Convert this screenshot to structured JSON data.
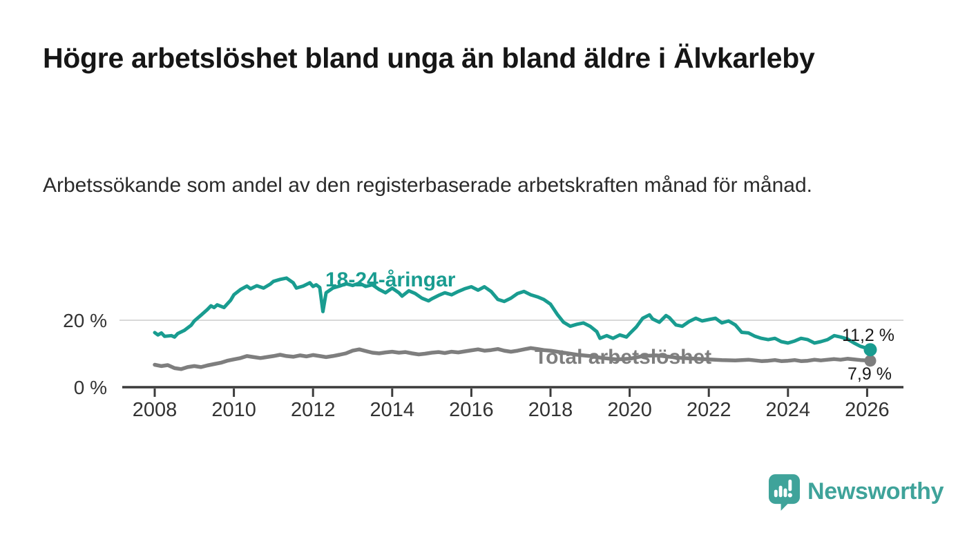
{
  "page": {
    "title": "Högre arbetslöshet bland unga än bland äldre i Älvkarleby",
    "subtitle": "Arbetssökande som andel av den registerbaserade arbetskraften månad för månad."
  },
  "chart_data": {
    "type": "line",
    "title": "Högre arbetslöshet bland unga än bland äldre i Älvkarleby",
    "xlabel": "",
    "ylabel": "",
    "unit": "%",
    "x_axis": {
      "min": 2007.2,
      "max": 2026.9,
      "ticks": [
        2008,
        2010,
        2012,
        2014,
        2016,
        2018,
        2020,
        2022,
        2024,
        2026
      ]
    },
    "y_axis": {
      "min": 0,
      "max": 34,
      "ticks": [
        {
          "value": 0,
          "label": "0 %"
        },
        {
          "value": 20,
          "label": "20 %"
        }
      ]
    },
    "gridlines_y": [
      20
    ],
    "legend_position": "inline-labels",
    "series": [
      {
        "name": "18-24-åringar",
        "color": "#199c90",
        "end_label": "11,2 %",
        "end_value": 11.2,
        "points": [
          [
            2008.0,
            16.3
          ],
          [
            2008.08,
            15.6
          ],
          [
            2008.17,
            16.2
          ],
          [
            2008.25,
            15.2
          ],
          [
            2008.42,
            15.4
          ],
          [
            2008.5,
            15.0
          ],
          [
            2008.58,
            16.0
          ],
          [
            2008.75,
            17.0
          ],
          [
            2008.92,
            18.5
          ],
          [
            2009.0,
            19.8
          ],
          [
            2009.17,
            21.5
          ],
          [
            2009.33,
            23.2
          ],
          [
            2009.42,
            24.3
          ],
          [
            2009.5,
            23.8
          ],
          [
            2009.58,
            24.6
          ],
          [
            2009.75,
            23.8
          ],
          [
            2009.92,
            26.0
          ],
          [
            2010.0,
            27.6
          ],
          [
            2010.17,
            29.2
          ],
          [
            2010.33,
            30.2
          ],
          [
            2010.42,
            29.4
          ],
          [
            2010.58,
            30.3
          ],
          [
            2010.75,
            29.6
          ],
          [
            2010.92,
            30.8
          ],
          [
            2011.0,
            31.6
          ],
          [
            2011.17,
            32.2
          ],
          [
            2011.33,
            32.6
          ],
          [
            2011.5,
            31.2
          ],
          [
            2011.58,
            29.6
          ],
          [
            2011.75,
            30.2
          ],
          [
            2011.92,
            31.2
          ],
          [
            2012.0,
            30.1
          ],
          [
            2012.08,
            30.6
          ],
          [
            2012.17,
            29.8
          ],
          [
            2012.25,
            22.6
          ],
          [
            2012.33,
            28.2
          ],
          [
            2012.5,
            29.6
          ],
          [
            2012.67,
            30.2
          ],
          [
            2012.83,
            30.9
          ],
          [
            2013.0,
            30.4
          ],
          [
            2013.17,
            31.1
          ],
          [
            2013.33,
            30.1
          ],
          [
            2013.5,
            30.6
          ],
          [
            2013.67,
            29.2
          ],
          [
            2013.83,
            28.2
          ],
          [
            2014.0,
            29.6
          ],
          [
            2014.17,
            28.2
          ],
          [
            2014.25,
            27.2
          ],
          [
            2014.42,
            28.8
          ],
          [
            2014.58,
            28.0
          ],
          [
            2014.75,
            26.6
          ],
          [
            2014.92,
            25.8
          ],
          [
            2015.0,
            26.4
          ],
          [
            2015.17,
            27.4
          ],
          [
            2015.33,
            28.2
          ],
          [
            2015.5,
            27.6
          ],
          [
            2015.67,
            28.6
          ],
          [
            2015.83,
            29.4
          ],
          [
            2016.0,
            30.0
          ],
          [
            2016.17,
            29.0
          ],
          [
            2016.33,
            30.0
          ],
          [
            2016.5,
            28.6
          ],
          [
            2016.67,
            26.2
          ],
          [
            2016.83,
            25.6
          ],
          [
            2017.0,
            26.6
          ],
          [
            2017.17,
            28.0
          ],
          [
            2017.33,
            28.6
          ],
          [
            2017.5,
            27.6
          ],
          [
            2017.67,
            27.0
          ],
          [
            2017.83,
            26.2
          ],
          [
            2018.0,
            24.8
          ],
          [
            2018.17,
            21.8
          ],
          [
            2018.33,
            19.4
          ],
          [
            2018.5,
            18.2
          ],
          [
            2018.67,
            18.8
          ],
          [
            2018.83,
            19.2
          ],
          [
            2019.0,
            18.2
          ],
          [
            2019.17,
            16.6
          ],
          [
            2019.25,
            14.6
          ],
          [
            2019.42,
            15.4
          ],
          [
            2019.58,
            14.6
          ],
          [
            2019.75,
            15.6
          ],
          [
            2019.92,
            15.0
          ],
          [
            2020.0,
            16.0
          ],
          [
            2020.17,
            18.0
          ],
          [
            2020.33,
            20.6
          ],
          [
            2020.5,
            21.6
          ],
          [
            2020.58,
            20.4
          ],
          [
            2020.75,
            19.4
          ],
          [
            2020.92,
            21.4
          ],
          [
            2021.0,
            20.8
          ],
          [
            2021.17,
            18.6
          ],
          [
            2021.33,
            18.2
          ],
          [
            2021.5,
            19.6
          ],
          [
            2021.67,
            20.6
          ],
          [
            2021.83,
            19.8
          ],
          [
            2022.0,
            20.2
          ],
          [
            2022.17,
            20.6
          ],
          [
            2022.33,
            19.2
          ],
          [
            2022.5,
            19.8
          ],
          [
            2022.67,
            18.6
          ],
          [
            2022.83,
            16.4
          ],
          [
            2023.0,
            16.2
          ],
          [
            2023.17,
            15.2
          ],
          [
            2023.33,
            14.6
          ],
          [
            2023.5,
            14.2
          ],
          [
            2023.67,
            14.6
          ],
          [
            2023.83,
            13.6
          ],
          [
            2024.0,
            13.2
          ],
          [
            2024.17,
            13.8
          ],
          [
            2024.33,
            14.6
          ],
          [
            2024.5,
            14.2
          ],
          [
            2024.67,
            13.2
          ],
          [
            2024.83,
            13.6
          ],
          [
            2025.0,
            14.2
          ],
          [
            2025.17,
            15.4
          ],
          [
            2025.33,
            15.0
          ],
          [
            2025.5,
            14.4
          ],
          [
            2025.67,
            13.2
          ],
          [
            2025.83,
            12.2
          ],
          [
            2026.0,
            11.6
          ],
          [
            2026.08,
            11.2
          ]
        ]
      },
      {
        "name": "Total arbetslöshet",
        "color": "#7e7e7e",
        "end_label": "7,9 %",
        "end_value": 7.9,
        "points": [
          [
            2008.0,
            6.7
          ],
          [
            2008.17,
            6.3
          ],
          [
            2008.33,
            6.6
          ],
          [
            2008.5,
            5.7
          ],
          [
            2008.67,
            5.4
          ],
          [
            2008.83,
            6.0
          ],
          [
            2009.0,
            6.3
          ],
          [
            2009.17,
            6.0
          ],
          [
            2009.33,
            6.5
          ],
          [
            2009.5,
            6.9
          ],
          [
            2009.67,
            7.3
          ],
          [
            2009.83,
            7.9
          ],
          [
            2010.0,
            8.3
          ],
          [
            2010.17,
            8.7
          ],
          [
            2010.33,
            9.3
          ],
          [
            2010.5,
            9.0
          ],
          [
            2010.67,
            8.7
          ],
          [
            2010.83,
            9.0
          ],
          [
            2011.0,
            9.3
          ],
          [
            2011.17,
            9.7
          ],
          [
            2011.33,
            9.3
          ],
          [
            2011.5,
            9.1
          ],
          [
            2011.67,
            9.5
          ],
          [
            2011.83,
            9.2
          ],
          [
            2012.0,
            9.6
          ],
          [
            2012.17,
            9.3
          ],
          [
            2012.33,
            9.0
          ],
          [
            2012.5,
            9.3
          ],
          [
            2012.67,
            9.7
          ],
          [
            2012.83,
            10.1
          ],
          [
            2013.0,
            10.9
          ],
          [
            2013.17,
            11.3
          ],
          [
            2013.33,
            10.8
          ],
          [
            2013.5,
            10.3
          ],
          [
            2013.67,
            10.1
          ],
          [
            2013.83,
            10.4
          ],
          [
            2014.0,
            10.6
          ],
          [
            2014.17,
            10.3
          ],
          [
            2014.33,
            10.5
          ],
          [
            2014.5,
            10.1
          ],
          [
            2014.67,
            9.8
          ],
          [
            2014.83,
            10.0
          ],
          [
            2015.0,
            10.3
          ],
          [
            2015.17,
            10.5
          ],
          [
            2015.33,
            10.2
          ],
          [
            2015.5,
            10.6
          ],
          [
            2015.67,
            10.4
          ],
          [
            2015.83,
            10.7
          ],
          [
            2016.0,
            11.0
          ],
          [
            2016.17,
            11.3
          ],
          [
            2016.33,
            10.9
          ],
          [
            2016.5,
            11.1
          ],
          [
            2016.67,
            11.4
          ],
          [
            2016.83,
            10.9
          ],
          [
            2017.0,
            10.6
          ],
          [
            2017.17,
            10.9
          ],
          [
            2017.33,
            11.3
          ],
          [
            2017.5,
            11.7
          ],
          [
            2017.67,
            11.4
          ],
          [
            2017.83,
            11.1
          ],
          [
            2018.0,
            10.9
          ],
          [
            2018.33,
            10.3
          ],
          [
            2018.67,
            9.7
          ],
          [
            2019.0,
            9.3
          ],
          [
            2019.33,
            8.7
          ],
          [
            2019.67,
            8.3
          ],
          [
            2020.0,
            8.5
          ],
          [
            2020.33,
            9.3
          ],
          [
            2020.67,
            9.5
          ],
          [
            2021.0,
            9.1
          ],
          [
            2021.33,
            8.7
          ],
          [
            2021.67,
            8.5
          ],
          [
            2022.0,
            8.3
          ],
          [
            2022.33,
            8.1
          ],
          [
            2022.67,
            8.0
          ],
          [
            2023.0,
            8.2
          ],
          [
            2023.17,
            8.0
          ],
          [
            2023.33,
            7.8
          ],
          [
            2023.5,
            7.9
          ],
          [
            2023.67,
            8.1
          ],
          [
            2023.83,
            7.8
          ],
          [
            2024.0,
            7.9
          ],
          [
            2024.17,
            8.1
          ],
          [
            2024.33,
            7.8
          ],
          [
            2024.5,
            7.9
          ],
          [
            2024.67,
            8.2
          ],
          [
            2024.83,
            8.0
          ],
          [
            2025.0,
            8.2
          ],
          [
            2025.17,
            8.4
          ],
          [
            2025.33,
            8.2
          ],
          [
            2025.5,
            8.5
          ],
          [
            2025.67,
            8.3
          ],
          [
            2025.83,
            8.1
          ],
          [
            2026.0,
            8.0
          ],
          [
            2026.08,
            7.9
          ]
        ]
      }
    ]
  },
  "branding": {
    "logo_text": "Newsworthy",
    "logo_color": "#3fa39a",
    "icon": "newsworthy-speech-bubble-bar-chart-icon"
  }
}
